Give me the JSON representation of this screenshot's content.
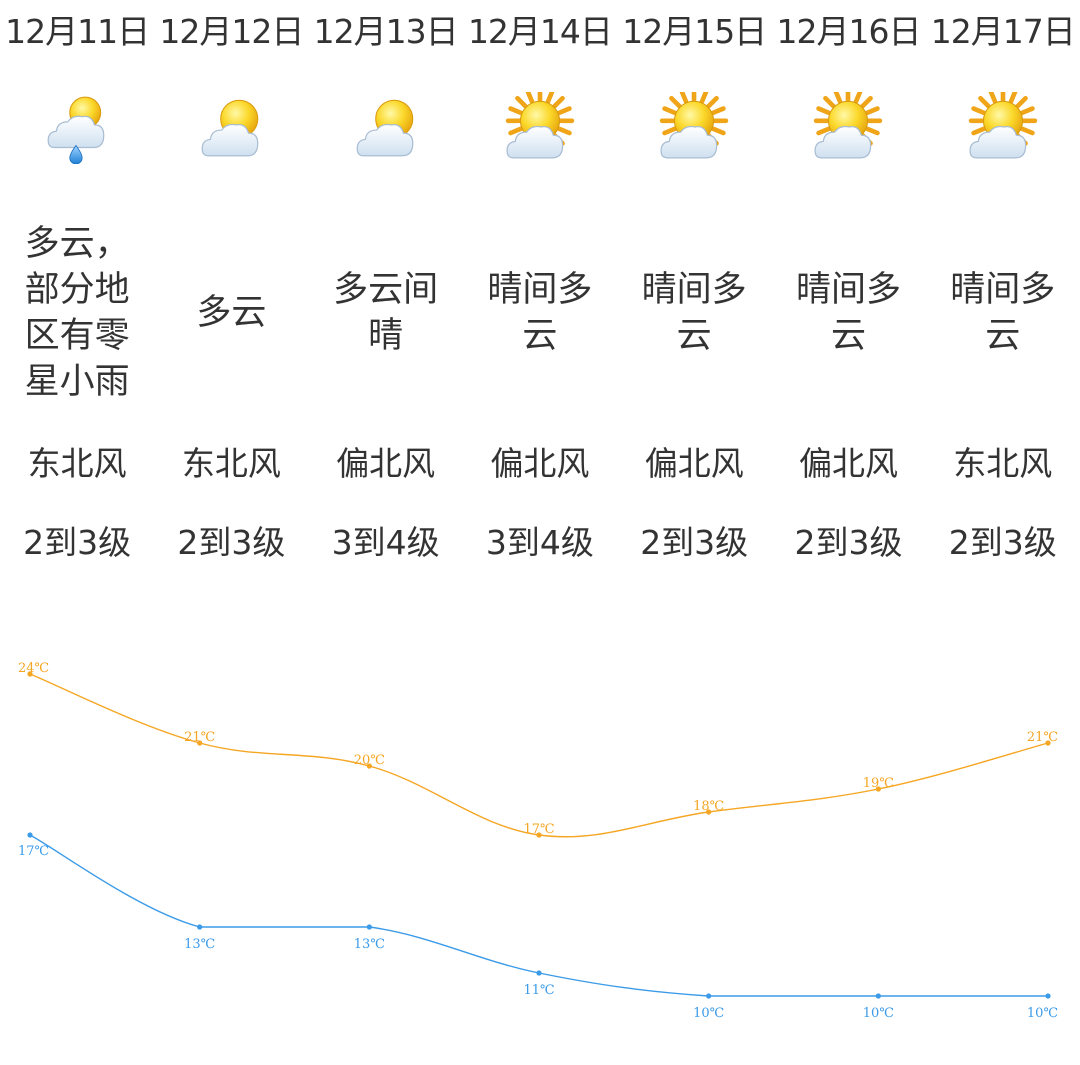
{
  "days": [
    {
      "date": "12月11日",
      "condition": "多云，部分地区有零星小雨",
      "wind_dir": "东北风",
      "wind_level": "2到3级",
      "icon": "cloud-sun-rain-icon"
    },
    {
      "date": "12月12日",
      "condition": "多云",
      "wind_dir": "东北风",
      "wind_level": "2到3级",
      "icon": "cloud-sun-icon"
    },
    {
      "date": "12月13日",
      "condition": "多云间晴",
      "wind_dir": "偏北风",
      "wind_level": "3到4级",
      "icon": "cloud-sun-icon"
    },
    {
      "date": "12月14日",
      "condition": "晴间多云",
      "wind_dir": "偏北风",
      "wind_level": "3到4级",
      "icon": "sun-cloud-icon"
    },
    {
      "date": "12月15日",
      "condition": "晴间多云",
      "wind_dir": "偏北风",
      "wind_level": "2到3级",
      "icon": "sun-cloud-icon"
    },
    {
      "date": "12月16日",
      "condition": "晴间多云",
      "wind_dir": "偏北风",
      "wind_level": "2到3级",
      "icon": "sun-cloud-icon"
    },
    {
      "date": "12月17日",
      "condition": "晴间多云",
      "wind_dir": "东北风",
      "wind_level": "2到3级",
      "icon": "sun-cloud-icon"
    }
  ],
  "colors": {
    "high_line": "#f5a623",
    "low_line": "#3b9be8",
    "text": "#333333"
  },
  "chart_data": {
    "type": "line",
    "x": [
      "12月11日",
      "12月12日",
      "12月13日",
      "12月14日",
      "12月15日",
      "12月16日",
      "12月17日"
    ],
    "unit": "℃",
    "series": [
      {
        "values": [
          24,
          21,
          20,
          17,
          18,
          19,
          21
        ],
        "labels": [
          "24℃",
          "21℃",
          "20℃",
          "17℃",
          "18℃",
          "19℃",
          "21℃"
        ]
      },
      {
        "values": [
          17,
          13,
          13,
          11,
          10,
          10,
          10
        ],
        "labels": [
          "17℃",
          "13℃",
          "13℃",
          "11℃",
          "10℃",
          "10℃",
          "10℃"
        ]
      }
    ],
    "grid": false,
    "legend": "none"
  }
}
